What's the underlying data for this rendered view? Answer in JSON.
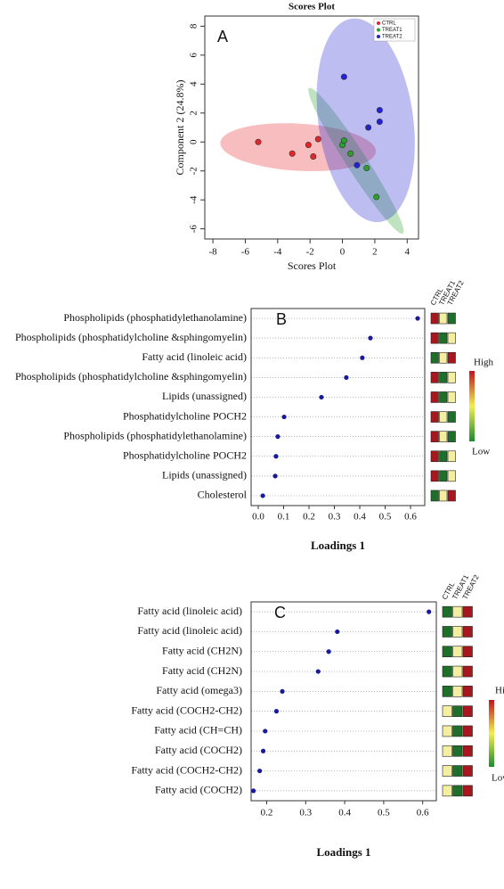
{
  "chart_data": [
    {
      "type": "scatter",
      "title": "Scores Plot",
      "x_label": "Scores Plot",
      "y_label": "Component 2 (24.8%)",
      "annotation": "A",
      "xlim": [
        -8.5,
        4.7
      ],
      "ylim": [
        -6.7,
        8.7
      ],
      "xticks": [
        -8,
        -6,
        -4,
        -2,
        0,
        2,
        4
      ],
      "yticks": [
        -6,
        -4,
        -2,
        0,
        2,
        4,
        6,
        8
      ],
      "legend": "top-right",
      "confidence_ellipses": true,
      "series": [
        {
          "name": "CTRL",
          "color": "#e3262b",
          "x": [
            -5.2,
            -3.1,
            -2.1,
            -1.8,
            -1.5
          ],
          "y": [
            0,
            -0.8,
            -0.2,
            -1.0,
            0.2
          ]
        },
        {
          "name": "TREAT1",
          "color": "#2ca02c",
          "x": [
            0,
            0.1,
            0.5,
            1.5,
            2.1
          ],
          "y": [
            -0.2,
            0.1,
            -0.8,
            -1.8,
            -3.8
          ]
        },
        {
          "name": "TREAT2",
          "color": "#2323d0",
          "x": [
            0.1,
            1.6,
            2.3,
            2.3,
            0.9
          ],
          "y": [
            4.5,
            1.0,
            2.2,
            1.4,
            -1.6
          ]
        }
      ]
    },
    {
      "type": "dot",
      "annotation": "B",
      "x_label": "Loadings 1",
      "color": "#1a1a9c",
      "grid": true,
      "xlim": [
        -0.028,
        0.656
      ],
      "xticks": [
        {
          "value": 0,
          "label": "0.0"
        },
        0.1,
        0.2,
        0.3,
        0.4,
        0.5,
        0.6
      ],
      "categories": [
        "Phospholipids (phosphatidylethanolamine)",
        "Phospholipids (phosphatidylcholine &sphingomyelin)",
        "Fatty acid (linoleic  acid)",
        "Phospholipids (phosphatidylcholine &sphingomyelin)",
        "Lipids (unassigned)",
        "Phosphatidylcholine POCH2",
        "Phospholipids (phosphatidylethanolamine)",
        "Phosphatidylcholine POCH2",
        "Lipids (unassigned)",
        "Cholesterol"
      ],
      "values": [
        0.628,
        0.442,
        0.41,
        0.347,
        0.249,
        0.102,
        0.077,
        0.07,
        0.067,
        0.018
      ],
      "heatmap": {
        "columns": [
          "CTRL",
          "TREAT1",
          "TREAT2"
        ],
        "scale_labels": [
          "High",
          "Low"
        ],
        "scale_colors": [
          "#c0141c",
          "#f2ee50",
          "#1d8a2e"
        ],
        "colors": [
          [
            "#a8171d",
            "#f4eea0",
            "#1e6f2a"
          ],
          [
            "#a8171d",
            "#1e6f2a",
            "#f4eea0"
          ],
          [
            "#1e6f2a",
            "#f4eea0",
            "#a8171d"
          ],
          [
            "#a8171d",
            "#1e6f2a",
            "#f4eea0"
          ],
          [
            "#a8171d",
            "#1e6f2a",
            "#f4eea0"
          ],
          [
            "#a8171d",
            "#f4eea0",
            "#1e6f2a"
          ],
          [
            "#a8171d",
            "#f4eea0",
            "#1e6f2a"
          ],
          [
            "#a8171d",
            "#1e6f2a",
            "#f4eea0"
          ],
          [
            "#a8171d",
            "#1e6f2a",
            "#f4eea0"
          ],
          [
            "#1e6f2a",
            "#f4eea0",
            "#a8171d"
          ]
        ]
      }
    },
    {
      "type": "dot",
      "annotation": "C",
      "x_label": "Loadings 1",
      "color": "#1a1a9c",
      "grid": true,
      "xlim": [
        0.16,
        0.635
      ],
      "xticks": [
        0.2,
        0.3,
        0.4,
        0.5,
        0.6
      ],
      "categories": [
        "Fatty acid (linoleic  acid)",
        "Fatty acid (linoleic  acid)",
        "Fatty acid (CH2N)",
        "Fatty acid (CH2N)",
        "Fatty acid (omega3)",
        "Fatty acid (COCH2-CH2)",
        "Fatty acid (CH=CH)",
        "Fatty acid (COCH2)",
        "Fatty acid (COCH2-CH2)",
        "Fatty acid (COCH2)"
      ],
      "values": [
        0.616,
        0.381,
        0.359,
        0.332,
        0.24,
        0.225,
        0.196,
        0.191,
        0.182,
        0.166
      ],
      "heatmap": {
        "columns": [
          "CTRL",
          "TREAT1",
          "TREAT2"
        ],
        "scale_labels": [
          "High",
          "Low"
        ],
        "scale_colors": [
          "#c0141c",
          "#f2ee50",
          "#1d8a2e"
        ],
        "colors": [
          [
            "#1e6f2a",
            "#f4eea0",
            "#a8171d"
          ],
          [
            "#1e6f2a",
            "#f4eea0",
            "#a8171d"
          ],
          [
            "#1e6f2a",
            "#f4eea0",
            "#a8171d"
          ],
          [
            "#1e6f2a",
            "#f4eea0",
            "#a8171d"
          ],
          [
            "#1e6f2a",
            "#f4eea0",
            "#a8171d"
          ],
          [
            "#f4eea0",
            "#1e6f2a",
            "#a8171d"
          ],
          [
            "#f4eea0",
            "#1e6f2a",
            "#a8171d"
          ],
          [
            "#f4eea0",
            "#1e6f2a",
            "#a8171d"
          ],
          [
            "#f4eea0",
            "#1e6f2a",
            "#a8171d"
          ],
          [
            "#f4eea0",
            "#1e6f2a",
            "#a8171d"
          ]
        ]
      }
    }
  ]
}
